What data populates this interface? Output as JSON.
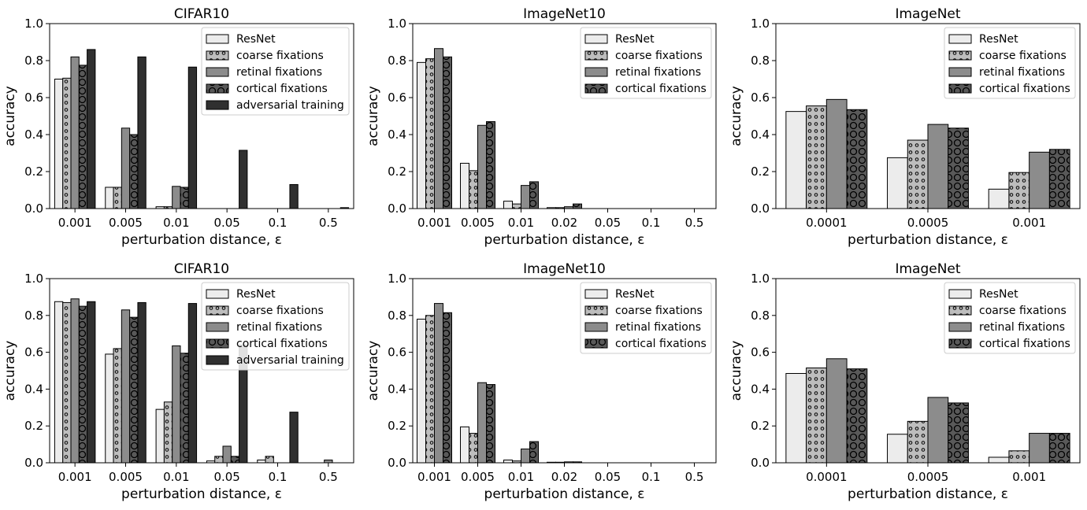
{
  "figure": {
    "series_styles": [
      {
        "name": "ResNet",
        "fill": "#ececec",
        "pattern": "none"
      },
      {
        "name": "coarse fixations",
        "fill": "#bdbdbd",
        "pattern": "small-circles"
      },
      {
        "name": "retinal fixations",
        "fill": "#8c8c8c",
        "pattern": "none"
      },
      {
        "name": "cortical fixations",
        "fill": "#595959",
        "pattern": "large-circles"
      },
      {
        "name": "adversarial training",
        "fill": "#303030",
        "pattern": "none"
      }
    ],
    "edge_color": "#000000"
  },
  "chart_data": [
    {
      "type": "bar",
      "title": "CIFAR10",
      "xlabel": "perturbation distance, ε",
      "ylabel": "accuracy",
      "ylim": [
        0,
        1.0
      ],
      "yticks": [
        "0.0",
        "0.2",
        "0.4",
        "0.6",
        "0.8",
        "1.0"
      ],
      "categories": [
        "0.001",
        "0.005",
        "0.01",
        "0.05",
        "0.1",
        "0.5"
      ],
      "legend": "top-right",
      "series": [
        {
          "name": "ResNet",
          "values": [
            0.7,
            0.115,
            0.01,
            0.0,
            0.0,
            0.0
          ]
        },
        {
          "name": "coarse fixations",
          "values": [
            0.705,
            0.115,
            0.01,
            0.0,
            0.0,
            0.0
          ]
        },
        {
          "name": "retinal fixations",
          "values": [
            0.82,
            0.435,
            0.12,
            0.0,
            0.0,
            0.0
          ]
        },
        {
          "name": "cortical fixations",
          "values": [
            0.775,
            0.4,
            0.115,
            0.0,
            0.0,
            0.0
          ]
        },
        {
          "name": "adversarial training",
          "values": [
            0.86,
            0.82,
            0.765,
            0.315,
            0.13,
            0.005
          ]
        }
      ]
    },
    {
      "type": "bar",
      "title": "ImageNet10",
      "xlabel": "perturbation distance, ε",
      "ylabel": "accuracy",
      "ylim": [
        0,
        1.0
      ],
      "yticks": [
        "0.0",
        "0.2",
        "0.4",
        "0.6",
        "0.8",
        "1.0"
      ],
      "categories": [
        "0.001",
        "0.005",
        "0.01",
        "0.02",
        "0.05",
        "0.1",
        "0.5"
      ],
      "legend": "top-right",
      "series": [
        {
          "name": "ResNet",
          "values": [
            0.79,
            0.245,
            0.04,
            0.005,
            0.0,
            0.0,
            0.0
          ]
        },
        {
          "name": "coarse fixations",
          "values": [
            0.81,
            0.205,
            0.025,
            0.005,
            0.0,
            0.0,
            0.0
          ]
        },
        {
          "name": "retinal fixations",
          "values": [
            0.865,
            0.45,
            0.125,
            0.01,
            0.0,
            0.0,
            0.0
          ]
        },
        {
          "name": "cortical fixations",
          "values": [
            0.82,
            0.47,
            0.145,
            0.025,
            0.0,
            0.0,
            0.0
          ]
        }
      ]
    },
    {
      "type": "bar",
      "title": "ImageNet",
      "xlabel": "perturbation distance, ε",
      "ylabel": "accuracy",
      "ylim": [
        0,
        1.0
      ],
      "yticks": [
        "0.0",
        "0.2",
        "0.4",
        "0.6",
        "0.8",
        "1.0"
      ],
      "categories": [
        "0.0001",
        "0.0005",
        "0.001"
      ],
      "legend": "top-right",
      "series": [
        {
          "name": "ResNet",
          "values": [
            0.525,
            0.275,
            0.105
          ]
        },
        {
          "name": "coarse fixations",
          "values": [
            0.555,
            0.37,
            0.195
          ]
        },
        {
          "name": "retinal fixations",
          "values": [
            0.59,
            0.455,
            0.305
          ]
        },
        {
          "name": "cortical fixations",
          "values": [
            0.535,
            0.435,
            0.32
          ]
        }
      ]
    },
    {
      "type": "bar",
      "title": "CIFAR10",
      "xlabel": "perturbation distance, ε",
      "ylabel": "accuracy",
      "ylim": [
        0,
        1.0
      ],
      "yticks": [
        "0.0",
        "0.2",
        "0.4",
        "0.6",
        "0.8",
        "1.0"
      ],
      "categories": [
        "0.001",
        "0.005",
        "0.01",
        "0.05",
        "0.1",
        "0.5"
      ],
      "legend": "top-right",
      "series": [
        {
          "name": "ResNet",
          "values": [
            0.875,
            0.59,
            0.29,
            0.01,
            0.015,
            0.0
          ]
        },
        {
          "name": "coarse fixations",
          "values": [
            0.87,
            0.62,
            0.33,
            0.035,
            0.035,
            0.0
          ]
        },
        {
          "name": "retinal fixations",
          "values": [
            0.89,
            0.83,
            0.635,
            0.09,
            0.0,
            0.015
          ]
        },
        {
          "name": "cortical fixations",
          "values": [
            0.85,
            0.79,
            0.595,
            0.035,
            0.0,
            0.0
          ]
        },
        {
          "name": "adversarial training",
          "values": [
            0.875,
            0.87,
            0.865,
            0.64,
            0.275,
            0.0
          ]
        }
      ]
    },
    {
      "type": "bar",
      "title": "ImageNet10",
      "xlabel": "perturbation distance, ε",
      "ylabel": "accuracy",
      "ylim": [
        0,
        1.0
      ],
      "yticks": [
        "0.0",
        "0.2",
        "0.4",
        "0.6",
        "0.8",
        "1.0"
      ],
      "categories": [
        "0.001",
        "0.005",
        "0.01",
        "0.02",
        "0.05",
        "0.1",
        "0.5"
      ],
      "legend": "top-right",
      "series": [
        {
          "name": "ResNet",
          "values": [
            0.78,
            0.195,
            0.015,
            0.003,
            0.0,
            0.0,
            0.0
          ]
        },
        {
          "name": "coarse fixations",
          "values": [
            0.8,
            0.16,
            0.01,
            0.003,
            0.0,
            0.0,
            0.0
          ]
        },
        {
          "name": "retinal fixations",
          "values": [
            0.865,
            0.435,
            0.075,
            0.005,
            0.0,
            0.0,
            0.0
          ]
        },
        {
          "name": "cortical fixations",
          "values": [
            0.815,
            0.425,
            0.115,
            0.005,
            0.0,
            0.0,
            0.0
          ]
        }
      ]
    },
    {
      "type": "bar",
      "title": "ImageNet",
      "xlabel": "perturbation distance, ε",
      "ylabel": "accuracy",
      "ylim": [
        0,
        1.0
      ],
      "yticks": [
        "0.0",
        "0.2",
        "0.4",
        "0.6",
        "0.8",
        "1.0"
      ],
      "categories": [
        "0.0001",
        "0.0005",
        "0.001"
      ],
      "legend": "top-right",
      "series": [
        {
          "name": "ResNet",
          "values": [
            0.485,
            0.155,
            0.03
          ]
        },
        {
          "name": "coarse fixations",
          "values": [
            0.515,
            0.225,
            0.065
          ]
        },
        {
          "name": "retinal fixations",
          "values": [
            0.565,
            0.355,
            0.16
          ]
        },
        {
          "name": "cortical fixations",
          "values": [
            0.51,
            0.325,
            0.16
          ]
        }
      ]
    }
  ]
}
